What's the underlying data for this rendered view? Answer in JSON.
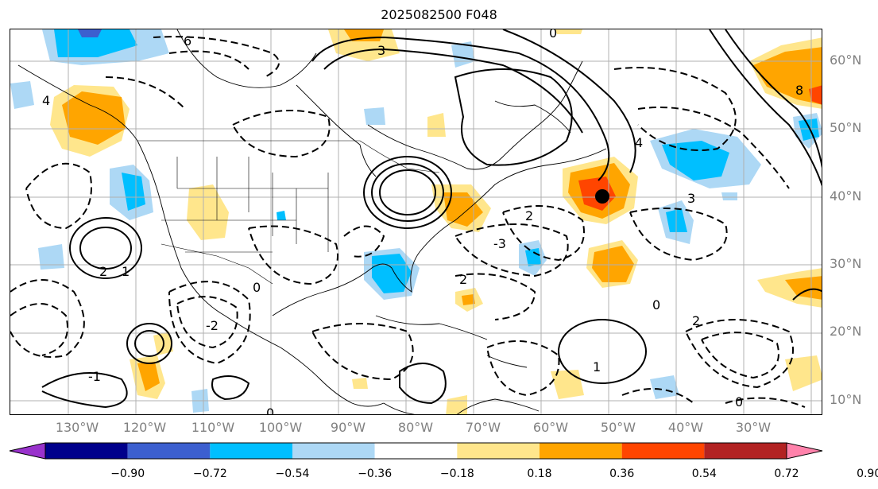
{
  "title": "2025082500 F048",
  "latitude_labels": [
    "60°N",
    "50°N",
    "40°N",
    "30°N",
    "20°N",
    "10°N"
  ],
  "longitude_labels": [
    "130°W",
    "120°W",
    "110°W",
    "100°W",
    "90°W",
    "80°W",
    "70°W",
    "60°W",
    "50°W",
    "40°W",
    "30°W"
  ],
  "colorbar": {
    "ticks": [
      "−0.90",
      "−0.72",
      "−0.54",
      "−0.36",
      "−0.18",
      "0.18",
      "0.36",
      "0.54",
      "0.72",
      "0.90"
    ],
    "colors": [
      "#9932cc",
      "#00008b",
      "#3c5fcf",
      "#00bfff",
      "#add8f5",
      "#ffffff",
      "#ffe68c",
      "#ffa500",
      "#ff4500",
      "#b22222",
      "#ff82ab"
    ]
  },
  "contour_labels": [
    "6",
    "3",
    "4",
    "2",
    "1",
    "0",
    "-1",
    "-2",
    "-3",
    "8",
    "3",
    "4",
    "2",
    "0",
    "0",
    "2",
    "1",
    "0",
    "0",
    "2"
  ],
  "marker": "black-dot"
}
